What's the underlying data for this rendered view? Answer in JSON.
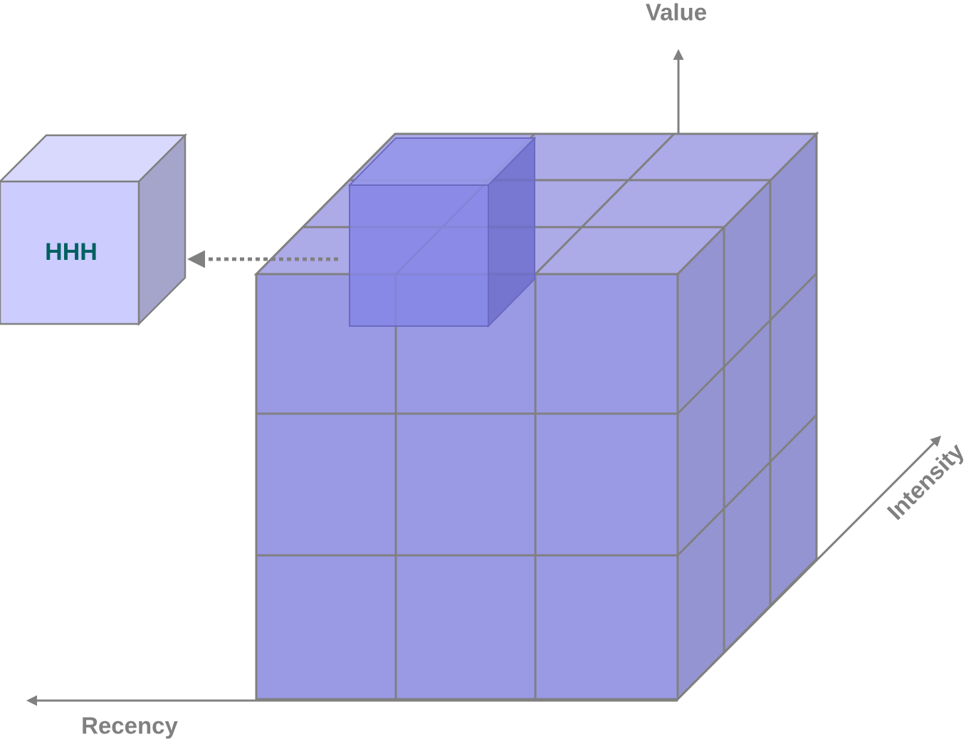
{
  "axes": {
    "value": "Value",
    "intensity": "Intensity",
    "recency": "Recency"
  },
  "cell_label": "HHH"
}
